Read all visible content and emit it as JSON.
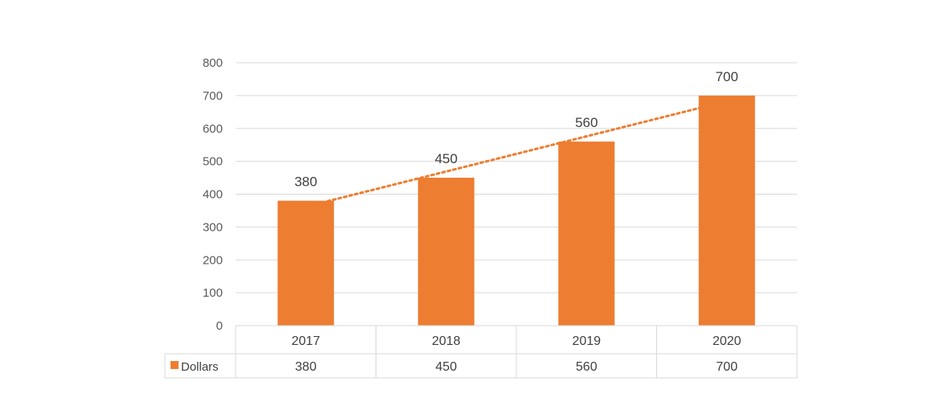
{
  "colors": {
    "bar": "#ED7D31",
    "trendline": "#ED7D31",
    "gridline": "#D9D9D9",
    "text": "#404040",
    "axis_text": "#595959"
  },
  "chart_data": {
    "type": "bar",
    "title": "",
    "xlabel": "",
    "ylabel": "",
    "categories": [
      "2017",
      "2018",
      "2019",
      "2020"
    ],
    "series": [
      {
        "name": "Dollars",
        "values": [
          380,
          450,
          560,
          700
        ]
      }
    ],
    "ylim": [
      0,
      800
    ],
    "yticks": [
      0,
      100,
      200,
      300,
      400,
      500,
      600,
      700,
      800
    ],
    "grid": true,
    "data_labels": true,
    "trendline": "linear, dotted",
    "data_table": true,
    "legend": "in data table"
  }
}
